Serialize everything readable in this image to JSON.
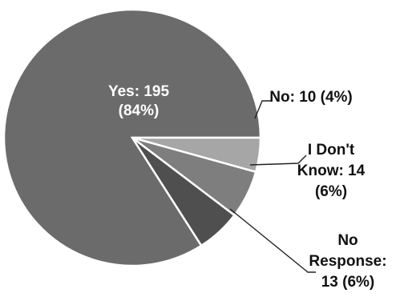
{
  "chart_data": {
    "type": "pie",
    "title": "",
    "slices": [
      {
        "category": "Yes",
        "value": 195,
        "percent": "84%",
        "color": "#6b6b6b",
        "label_lines": [
          "Yes: 195",
          "(84%)"
        ],
        "label_color": "#ffffff"
      },
      {
        "category": "No",
        "value": 10,
        "percent": "4%",
        "color": "#a6a6a6",
        "label_lines": [
          "No: 10 (4%)"
        ],
        "label_color": "#111111"
      },
      {
        "category": "I Don't Know",
        "value": 14,
        "percent": "6%",
        "color": "#7e7e7e",
        "label_lines": [
          "I Don't",
          "Know: 14",
          "(6%)"
        ],
        "label_color": "#111111"
      },
      {
        "category": "No Response",
        "value": 13,
        "percent": "6%",
        "color": "#4f4f4f",
        "label_lines": [
          "No",
          "Response:",
          "13 (6%)"
        ],
        "label_color": "#111111"
      }
    ],
    "legend": "none"
  }
}
